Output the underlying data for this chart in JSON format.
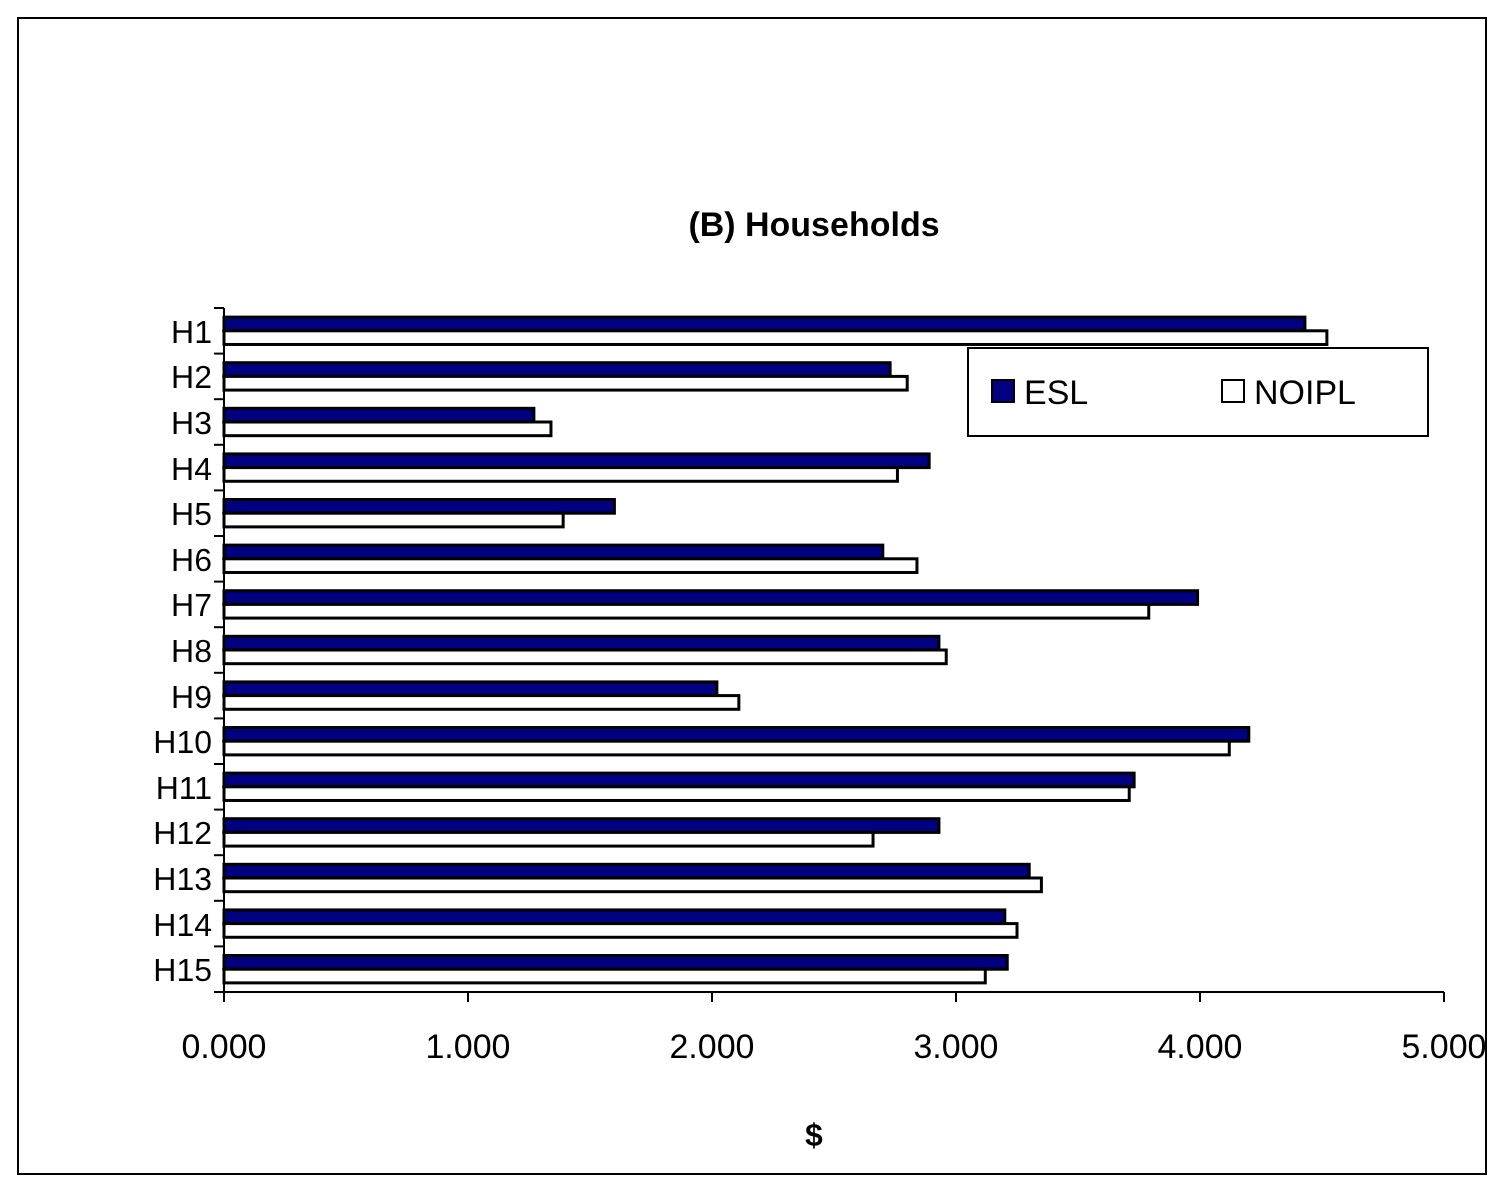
{
  "chart_data": {
    "type": "bar",
    "orientation": "horizontal",
    "title": "(B) Households",
    "xlabel": "$",
    "categories": [
      "H1",
      "H2",
      "H3",
      "H4",
      "H5",
      "H6",
      "H7",
      "H8",
      "H9",
      "H10",
      "H11",
      "H12",
      "H13",
      "H14",
      "H15"
    ],
    "series": [
      {
        "name": "ESL",
        "color": "#000080",
        "values": [
          4.43,
          2.73,
          1.27,
          2.89,
          1.6,
          2.7,
          3.99,
          2.93,
          2.02,
          4.2,
          3.73,
          2.93,
          3.3,
          3.2,
          3.21
        ]
      },
      {
        "name": "NOIPL",
        "color": "#ffffff",
        "values": [
          4.52,
          2.8,
          1.34,
          2.76,
          1.39,
          2.84,
          3.79,
          2.96,
          2.11,
          4.12,
          3.71,
          2.66,
          3.35,
          3.25,
          3.12
        ]
      }
    ],
    "xlim": [
      0,
      5
    ],
    "xticks": [
      {
        "value": 0,
        "label": "0.000"
      },
      {
        "value": 1,
        "label": "1.000"
      },
      {
        "value": 2,
        "label": "2.000"
      },
      {
        "value": 3,
        "label": "3.000"
      },
      {
        "value": 4,
        "label": "4.000"
      },
      {
        "value": 5,
        "label": "5.000"
      }
    ],
    "grid": false,
    "legend": "top right"
  }
}
